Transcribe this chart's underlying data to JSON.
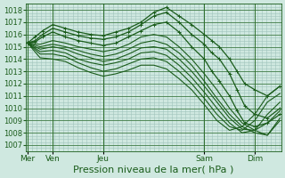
{
  "title": "",
  "xlabel": "Pression niveau de la mer( hPa )",
  "ylabel": "",
  "ylim": [
    1006.5,
    1018.5
  ],
  "yticks": [
    1007,
    1008,
    1009,
    1010,
    1011,
    1012,
    1013,
    1014,
    1015,
    1016,
    1017,
    1018
  ],
  "bg_color": "#cfe8e0",
  "grid_color": "#a0c4bc",
  "line_color": "#1a5c1a",
  "vline_color": "#2d6e2d",
  "xlabel_fontsize": 8,
  "ytick_fontsize": 6,
  "xtick_fontsize": 6.5,
  "lines": [
    {
      "x": [
        0.0,
        0.3,
        0.6,
        1.0,
        1.5,
        2.0,
        2.5,
        3.0,
        3.5,
        4.0,
        4.5,
        5.0,
        5.5,
        6.0,
        6.5,
        7.0,
        7.3,
        7.6,
        8.0,
        8.3,
        8.6,
        9.0,
        9.5,
        10.0
      ],
      "y": [
        1015.3,
        1015.8,
        1016.3,
        1016.8,
        1016.5,
        1016.2,
        1016.0,
        1015.9,
        1016.2,
        1016.5,
        1017.0,
        1017.8,
        1018.2,
        1017.5,
        1016.8,
        1016.0,
        1015.5,
        1015.0,
        1014.0,
        1013.0,
        1012.0,
        1011.5,
        1011.0,
        1011.8
      ],
      "marker": true,
      "lw": 0.9
    },
    {
      "x": [
        0.0,
        0.3,
        0.6,
        1.0,
        1.5,
        2.0,
        2.5,
        3.0,
        3.5,
        4.0,
        4.5,
        5.0,
        5.5,
        6.0,
        6.5,
        7.0,
        7.3,
        7.6,
        8.0,
        8.3,
        8.6,
        9.0,
        9.5,
        10.0
      ],
      "y": [
        1015.3,
        1015.5,
        1016.0,
        1016.5,
        1016.2,
        1015.9,
        1015.7,
        1015.6,
        1015.8,
        1016.2,
        1016.8,
        1017.5,
        1017.8,
        1017.0,
        1016.0,
        1015.2,
        1014.5,
        1014.0,
        1012.8,
        1011.5,
        1010.2,
        1009.5,
        1009.2,
        1010.0
      ],
      "marker": true,
      "lw": 0.9
    },
    {
      "x": [
        0.0,
        0.3,
        0.6,
        1.0,
        1.5,
        2.0,
        2.5,
        3.0,
        3.5,
        4.0,
        4.5,
        5.0,
        5.5,
        6.0,
        6.5,
        7.0,
        7.3,
        7.6,
        8.0,
        8.3,
        8.6,
        9.0,
        9.5,
        10.0
      ],
      "y": [
        1015.3,
        1015.4,
        1015.8,
        1016.2,
        1015.8,
        1015.5,
        1015.3,
        1015.1,
        1015.3,
        1015.8,
        1016.3,
        1016.8,
        1017.0,
        1016.2,
        1015.0,
        1014.0,
        1013.0,
        1012.2,
        1011.0,
        1009.8,
        1008.8,
        1008.5,
        1008.8,
        1009.5
      ],
      "marker": true,
      "lw": 0.9
    },
    {
      "x": [
        0.0,
        0.5,
        1.0,
        1.5,
        2.0,
        2.5,
        3.0,
        3.5,
        4.0,
        4.5,
        5.0,
        5.5,
        6.0,
        6.5,
        7.0,
        7.5,
        8.0,
        8.5,
        9.0,
        9.5,
        10.0
      ],
      "y": [
        1015.3,
        1015.2,
        1015.5,
        1015.3,
        1015.0,
        1014.8,
        1014.6,
        1014.8,
        1015.2,
        1015.8,
        1016.0,
        1015.8,
        1015.0,
        1014.0,
        1012.8,
        1011.5,
        1010.0,
        1008.8,
        1008.2,
        1007.8,
        1009.0
      ],
      "marker": false,
      "lw": 0.8
    },
    {
      "x": [
        0.0,
        0.5,
        1.0,
        1.5,
        2.0,
        2.5,
        3.0,
        3.5,
        4.0,
        4.5,
        5.0,
        5.5,
        6.0,
        6.5,
        7.0,
        7.5,
        8.0,
        8.5,
        9.0,
        9.5,
        10.0
      ],
      "y": [
        1015.3,
        1015.0,
        1015.2,
        1015.0,
        1014.7,
        1014.4,
        1014.2,
        1014.4,
        1014.8,
        1015.3,
        1015.5,
        1015.2,
        1014.5,
        1013.5,
        1012.2,
        1010.8,
        1009.5,
        1008.5,
        1008.0,
        1007.8,
        1009.2
      ],
      "marker": false,
      "lw": 0.8
    },
    {
      "x": [
        0.0,
        0.5,
        1.0,
        1.5,
        2.0,
        2.5,
        3.0,
        3.5,
        4.0,
        4.5,
        5.0,
        5.5,
        6.0,
        6.5,
        7.0,
        7.5,
        8.0,
        8.5,
        9.0,
        9.5,
        10.0
      ],
      "y": [
        1015.3,
        1014.8,
        1015.0,
        1014.8,
        1014.4,
        1014.1,
        1013.8,
        1014.0,
        1014.4,
        1014.9,
        1015.0,
        1014.8,
        1014.0,
        1013.0,
        1011.8,
        1010.5,
        1009.2,
        1008.3,
        1008.2,
        1008.8,
        1009.8
      ],
      "marker": false,
      "lw": 0.8
    },
    {
      "x": [
        0.0,
        0.5,
        1.0,
        1.5,
        2.0,
        2.5,
        3.0,
        3.5,
        4.0,
        4.5,
        5.0,
        5.5,
        6.0,
        6.5,
        7.0,
        7.5,
        8.0,
        8.5,
        9.0,
        9.5,
        10.0
      ],
      "y": [
        1015.3,
        1014.6,
        1014.7,
        1014.5,
        1014.0,
        1013.7,
        1013.5,
        1013.7,
        1014.0,
        1014.5,
        1014.6,
        1014.3,
        1013.5,
        1012.5,
        1011.3,
        1010.0,
        1008.8,
        1008.0,
        1008.2,
        1009.5,
        1010.5
      ],
      "marker": false,
      "lw": 0.8
    },
    {
      "x": [
        0.0,
        0.5,
        1.0,
        1.5,
        2.0,
        2.5,
        3.0,
        3.5,
        4.0,
        4.5,
        5.0,
        5.5,
        6.0,
        6.5,
        7.0,
        7.5,
        8.0,
        8.5,
        9.0,
        9.5,
        10.0
      ],
      "y": [
        1015.3,
        1014.4,
        1014.4,
        1014.2,
        1013.7,
        1013.3,
        1013.0,
        1013.2,
        1013.6,
        1014.0,
        1014.1,
        1013.8,
        1013.0,
        1012.0,
        1010.8,
        1009.5,
        1008.5,
        1008.2,
        1009.0,
        1010.5,
        1011.2
      ],
      "marker": false,
      "lw": 0.8
    },
    {
      "x": [
        0.0,
        0.5,
        1.0,
        1.5,
        2.0,
        2.5,
        3.0,
        3.5,
        4.0,
        4.5,
        5.0,
        5.5,
        6.0,
        6.5,
        7.0,
        7.5,
        8.0,
        8.5,
        9.0,
        9.5,
        10.0
      ],
      "y": [
        1015.3,
        1014.1,
        1014.0,
        1013.8,
        1013.3,
        1012.9,
        1012.6,
        1012.8,
        1013.1,
        1013.5,
        1013.5,
        1013.2,
        1012.4,
        1011.5,
        1010.3,
        1009.0,
        1008.2,
        1008.5,
        1009.5,
        1011.0,
        1011.8
      ],
      "marker": false,
      "lw": 0.8
    }
  ],
  "xtick_positions": [
    0,
    1,
    3,
    7,
    9
  ],
  "xtick_labels": [
    "Mer",
    "Ven",
    "Jeu",
    "Sam",
    "Dim"
  ],
  "vline_positions": [
    0,
    1,
    3,
    7,
    9
  ]
}
